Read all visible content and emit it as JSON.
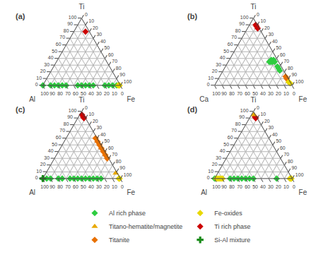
{
  "chart_data": [
    {
      "type": "ternary",
      "title": "(a)",
      "top_label": "Ti",
      "left_label": "Al",
      "right_label": "Fe",
      "ticks": [
        0,
        10,
        20,
        30,
        40,
        50,
        60,
        70,
        80,
        90,
        100
      ],
      "grid": true,
      "series": [
        {
          "name": "Al rich phase",
          "color": "#2ecc40",
          "marker": "diamond",
          "values": [
            [
              100,
              0,
              0
            ],
            [
              90,
              0,
              10
            ],
            [
              85,
              0,
              15
            ],
            [
              80,
              0,
              20
            ],
            [
              75,
              0,
              25
            ],
            [
              70,
              0,
              30
            ],
            [
              55,
              0,
              45
            ],
            [
              50,
              0,
              50
            ],
            [
              45,
              0,
              55
            ],
            [
              40,
              0,
              60
            ],
            [
              35,
              0,
              65
            ],
            [
              20,
              0,
              80
            ],
            [
              15,
              0,
              85
            ],
            [
              10,
              0,
              90
            ],
            [
              5,
              0,
              95
            ]
          ]
        },
        {
          "name": "Fe-oxides",
          "color": "#e8d800",
          "marker": "diamond",
          "values": [
            [
              3,
              0,
              97
            ],
            [
              2,
              0,
              98
            ],
            [
              1,
              0,
              99
            ]
          ]
        },
        {
          "name": "Ti rich phase",
          "color": "#cc0000",
          "marker": "diamond",
          "values": [
            [
              5,
              80,
              15
            ]
          ]
        }
      ]
    },
    {
      "type": "ternary",
      "title": "(b)",
      "top_label": "Ti",
      "left_label": "Ca",
      "right_label": "Fe",
      "ticks": [
        0,
        10,
        20,
        30,
        40,
        50,
        60,
        70,
        80,
        90,
        100
      ],
      "grid": true,
      "series": [
        {
          "name": "Al rich phase",
          "color": "#2ecc40",
          "marker": "diamond",
          "values": [
            [
              5,
              35,
              60
            ],
            [
              5,
              38,
              57
            ],
            [
              8,
              35,
              57
            ],
            [
              8,
              38,
              54
            ],
            [
              10,
              35,
              55
            ],
            [
              12,
              35,
              53
            ],
            [
              5,
              28,
              67
            ],
            [
              5,
              25,
              70
            ],
            [
              5,
              22,
              73
            ]
          ]
        },
        {
          "name": "Ti rich phase",
          "color": "#cc0000",
          "marker": "diamond",
          "values": [
            [
              2,
              85,
              13
            ],
            [
              2,
              88,
              10
            ],
            [
              2,
              90,
              8
            ]
          ]
        },
        {
          "name": "Titanite",
          "color": "#e87000",
          "marker": "diamond",
          "values": [
            [
              2,
              13,
              85
            ],
            [
              2,
              10,
              88
            ]
          ]
        },
        {
          "name": "Fe-oxides",
          "color": "#e8d800",
          "marker": "diamond",
          "values": [
            [
              2,
              5,
              93
            ],
            [
              1,
              3,
              96
            ]
          ]
        }
      ]
    },
    {
      "type": "ternary",
      "title": "(c)",
      "top_label": "Ti",
      "left_label": "Al",
      "right_label": "Fe",
      "ticks": [
        0,
        10,
        20,
        30,
        40,
        50,
        60,
        70,
        80,
        90,
        100
      ],
      "grid": true,
      "legend": "bottom",
      "series": [
        {
          "name": "Al rich phase",
          "color": "#2ecc40",
          "marker": "diamond",
          "values": [
            [
              100,
              0,
              0
            ],
            [
              95,
              0,
              5
            ],
            [
              90,
              0,
              10
            ],
            [
              80,
              0,
              20
            ],
            [
              75,
              0,
              25
            ],
            [
              65,
              0,
              35
            ],
            [
              60,
              0,
              40
            ],
            [
              55,
              0,
              45
            ],
            [
              50,
              0,
              50
            ],
            [
              45,
              0,
              55
            ],
            [
              40,
              0,
              60
            ],
            [
              35,
              0,
              65
            ],
            [
              30,
              0,
              70
            ],
            [
              25,
              0,
              75
            ]
          ]
        },
        {
          "name": "Fe-oxides",
          "color": "#e8d800",
          "marker": "diamond",
          "values": [
            [
              2,
              0,
              98
            ],
            [
              1,
              0,
              99
            ]
          ]
        },
        {
          "name": "Titano-hematite/magnetite",
          "color": "#e8a800",
          "marker": "triangle-up",
          "values": [
            [
              2,
              8,
              90
            ]
          ]
        },
        {
          "name": "Ti rich phase",
          "color": "#cc0000",
          "marker": "diamond",
          "values": [
            [
              2,
              90,
              8
            ],
            [
              2,
              92,
              6
            ],
            [
              2,
              95,
              3
            ]
          ]
        },
        {
          "name": "Titanite",
          "color": "#e87000",
          "marker": "diamond",
          "values": [
            [
              2,
              60,
              38
            ],
            [
              2,
              55,
              43
            ],
            [
              2,
              50,
              48
            ],
            [
              2,
              45,
              53
            ],
            [
              2,
              40,
              58
            ],
            [
              2,
              35,
              63
            ],
            [
              2,
              30,
              68
            ]
          ]
        },
        {
          "name": "Si-Al mixture",
          "color": "#1a8c1a",
          "marker": "cross",
          "values": [
            [
              100,
              0,
              0
            ]
          ]
        }
      ]
    },
    {
      "type": "ternary",
      "title": "(d)",
      "top_label": "Ti",
      "left_label": "Al",
      "right_label": "Fe",
      "ticks": [
        0,
        10,
        20,
        30,
        40,
        50,
        60,
        70,
        80,
        90,
        100
      ],
      "grid": true,
      "series": [
        {
          "name": "Al rich phase",
          "color": "#2ecc40",
          "marker": "diamond",
          "values": [
            [
              100,
              0,
              0
            ],
            [
              80,
              0,
              20
            ],
            [
              20,
              0,
              80
            ],
            [
              50,
              0,
              50
            ],
            [
              55,
              0,
              45
            ],
            [
              60,
              0,
              40
            ],
            [
              65,
              0,
              35
            ],
            [
              70,
              0,
              30
            ],
            [
              75,
              0,
              25
            ]
          ]
        },
        {
          "name": "Fe-oxides",
          "color": "#e8d800",
          "marker": "diamond",
          "values": [
            [
              3,
              0,
              97
            ],
            [
              2,
              0,
              98
            ],
            [
              1,
              0,
              99
            ],
            [
              90,
              0,
              10
            ],
            [
              92,
              0,
              8
            ],
            [
              94,
              0,
              6
            ],
            [
              96,
              0,
              4
            ],
            [
              98,
              0,
              2
            ]
          ]
        },
        {
          "name": "Ti rich phase",
          "color": "#cc0000",
          "marker": "diamond",
          "values": [
            [
              2,
              92,
              6
            ],
            [
              2,
              90,
              8
            ]
          ]
        },
        {
          "name": "Titano-hematite/magnetite",
          "color": "#e8a800",
          "marker": "triangle-up",
          "values": [
            [
              2,
              95,
              3
            ]
          ]
        }
      ]
    }
  ]
}
